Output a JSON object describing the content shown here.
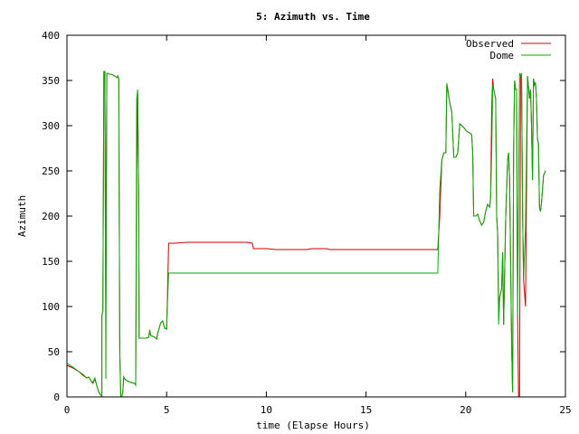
{
  "chart_data": {
    "type": "line",
    "title": "5: Azimuth vs. Time",
    "xlabel": "time (Elapse Hours)",
    "ylabel": "Azimuth",
    "xlim": [
      0,
      25
    ],
    "ylim": [
      0,
      400
    ],
    "x_ticks": [
      0,
      5,
      10,
      15,
      20,
      25
    ],
    "y_ticks": [
      0,
      50,
      100,
      150,
      200,
      250,
      300,
      350,
      400
    ],
    "grid": false,
    "legend_position": "top-right",
    "series": [
      {
        "name": "Observed",
        "color": "#cc0000",
        "points": [
          [
            0,
            35
          ],
          [
            0.3,
            32
          ],
          [
            0.6,
            28
          ],
          [
            0.8,
            24
          ],
          [
            1.0,
            21
          ],
          [
            1.1,
            22
          ],
          [
            1.2,
            18
          ],
          [
            1.3,
            15
          ],
          [
            1.4,
            20
          ],
          [
            1.5,
            12
          ],
          [
            1.6,
            5
          ],
          [
            1.7,
            2
          ],
          [
            1.75,
            0
          ],
          [
            1.75,
            90
          ],
          [
            1.8,
            95
          ],
          [
            1.85,
            360
          ],
          [
            1.9,
            360
          ],
          [
            1.95,
            105
          ],
          [
            2.0,
            358
          ],
          [
            2.05,
            358
          ],
          [
            2.1,
            357
          ],
          [
            2.2,
            357
          ],
          [
            2.3,
            356
          ],
          [
            2.4,
            355
          ],
          [
            2.5,
            353
          ],
          [
            2.55,
            355
          ],
          [
            2.6,
            352
          ],
          [
            2.65,
            50
          ],
          [
            2.7,
            0
          ],
          [
            2.75,
            0
          ],
          [
            2.8,
            5
          ],
          [
            2.85,
            22
          ],
          [
            2.9,
            20
          ],
          [
            3.0,
            18
          ],
          [
            3.2,
            16
          ],
          [
            3.4,
            15
          ],
          [
            3.45,
            13
          ],
          [
            3.5,
            250
          ],
          [
            3.55,
            335
          ],
          [
            3.6,
            220
          ],
          [
            3.62,
            65
          ],
          [
            4.0,
            65
          ],
          [
            4.1,
            66
          ],
          [
            4.15,
            74
          ],
          [
            4.2,
            68
          ],
          [
            4.4,
            66
          ],
          [
            4.5,
            64
          ],
          [
            4.55,
            70
          ],
          [
            4.7,
            82
          ],
          [
            4.8,
            84
          ],
          [
            4.9,
            76
          ],
          [
            5.0,
            75
          ],
          [
            5.05,
            120
          ],
          [
            5.1,
            170
          ],
          [
            5.4,
            170
          ],
          [
            6.0,
            171
          ],
          [
            7.0,
            171
          ],
          [
            8.0,
            171
          ],
          [
            9.0,
            171
          ],
          [
            9.3,
            170
          ],
          [
            9.35,
            164
          ],
          [
            10.0,
            164
          ],
          [
            10.5,
            163
          ],
          [
            11.0,
            163
          ],
          [
            12.0,
            163
          ],
          [
            12.3,
            164
          ],
          [
            13.0,
            164
          ],
          [
            13.2,
            163
          ],
          [
            14.0,
            163
          ],
          [
            15.0,
            163
          ],
          [
            16.0,
            163
          ],
          [
            17.0,
            163
          ],
          [
            18.0,
            163
          ],
          [
            18.6,
            163
          ],
          [
            18.7,
            200
          ],
          [
            18.8,
            262
          ],
          [
            18.9,
            270
          ],
          [
            19.0,
            270
          ],
          [
            19.05,
            345
          ],
          [
            19.1,
            340
          ],
          [
            19.2,
            325
          ],
          [
            19.3,
            315
          ],
          [
            19.35,
            290
          ],
          [
            19.4,
            265
          ],
          [
            19.5,
            265
          ],
          [
            19.6,
            270
          ],
          [
            19.7,
            302
          ],
          [
            19.8,
            300
          ],
          [
            19.9,
            298
          ],
          [
            20.0,
            295
          ],
          [
            20.1,
            293
          ],
          [
            20.2,
            292
          ],
          [
            20.3,
            290
          ],
          [
            20.35,
            270
          ],
          [
            20.4,
            200
          ],
          [
            20.5,
            200
          ],
          [
            20.6,
            202
          ],
          [
            20.7,
            195
          ],
          [
            20.8,
            190
          ],
          [
            20.9,
            193
          ],
          [
            21.0,
            205
          ],
          [
            21.1,
            213
          ],
          [
            21.2,
            210
          ],
          [
            21.25,
            220
          ],
          [
            21.3,
            320
          ],
          [
            21.35,
            352
          ],
          [
            21.4,
            340
          ],
          [
            21.5,
            330
          ],
          [
            21.55,
            200
          ],
          [
            21.6,
            180
          ],
          [
            21.65,
            90
          ],
          [
            21.7,
            110
          ],
          [
            21.8,
            120
          ],
          [
            21.85,
            160
          ],
          [
            21.9,
            80
          ],
          [
            21.95,
            135
          ],
          [
            22.0,
            195
          ],
          [
            22.1,
            262
          ],
          [
            22.15,
            270
          ],
          [
            22.2,
            240
          ],
          [
            22.25,
            150
          ],
          [
            22.3,
            60
          ],
          [
            22.35,
            5
          ],
          [
            22.4,
            270
          ],
          [
            22.45,
            350
          ],
          [
            22.5,
            340
          ],
          [
            22.55,
            340
          ],
          [
            22.6,
            90
          ],
          [
            22.65,
            0
          ],
          [
            22.7,
            0
          ],
          [
            22.75,
            355
          ],
          [
            22.8,
            358
          ],
          [
            22.85,
            210
          ],
          [
            22.9,
            130
          ],
          [
            23.0,
            100
          ],
          [
            23.1,
            355
          ],
          [
            23.2,
            330
          ],
          [
            23.25,
            340
          ],
          [
            23.3,
            300
          ],
          [
            23.35,
            240
          ],
          [
            23.4,
            352
          ],
          [
            23.45,
            345
          ],
          [
            23.5,
            348
          ],
          [
            23.55,
            330
          ],
          [
            23.6,
            285
          ],
          [
            23.65,
            280
          ],
          [
            23.7,
            210
          ],
          [
            23.75,
            205
          ],
          [
            23.8,
            215
          ],
          [
            23.9,
            245
          ],
          [
            24.0,
            250
          ]
        ]
      },
      {
        "name": "Dome",
        "color": "#00aa00",
        "points": [
          [
            0,
            37
          ],
          [
            0.3,
            33
          ],
          [
            0.6,
            28
          ],
          [
            0.8,
            25
          ],
          [
            1.0,
            21
          ],
          [
            1.1,
            22
          ],
          [
            1.2,
            18
          ],
          [
            1.3,
            16
          ],
          [
            1.4,
            21
          ],
          [
            1.5,
            12
          ],
          [
            1.6,
            5
          ],
          [
            1.7,
            2
          ],
          [
            1.75,
            0
          ],
          [
            1.75,
            90
          ],
          [
            1.8,
            95
          ],
          [
            1.85,
            360
          ],
          [
            1.9,
            360
          ],
          [
            1.95,
            20
          ],
          [
            2.0,
            358
          ],
          [
            2.05,
            358
          ],
          [
            2.1,
            357
          ],
          [
            2.2,
            357
          ],
          [
            2.3,
            356
          ],
          [
            2.4,
            355
          ],
          [
            2.5,
            353
          ],
          [
            2.55,
            355
          ],
          [
            2.6,
            352
          ],
          [
            2.65,
            50
          ],
          [
            2.7,
            0
          ],
          [
            2.75,
            0
          ],
          [
            2.8,
            5
          ],
          [
            2.85,
            22
          ],
          [
            2.9,
            20
          ],
          [
            3.0,
            18
          ],
          [
            3.2,
            16
          ],
          [
            3.4,
            15
          ],
          [
            3.45,
            13
          ],
          [
            3.5,
            330
          ],
          [
            3.55,
            340
          ],
          [
            3.6,
            220
          ],
          [
            3.62,
            65
          ],
          [
            4.0,
            65
          ],
          [
            4.1,
            66
          ],
          [
            4.15,
            74
          ],
          [
            4.2,
            68
          ],
          [
            4.4,
            66
          ],
          [
            4.5,
            64
          ],
          [
            4.55,
            70
          ],
          [
            4.7,
            82
          ],
          [
            4.8,
            84
          ],
          [
            4.9,
            76
          ],
          [
            5.0,
            75
          ],
          [
            5.05,
            110
          ],
          [
            5.1,
            137
          ],
          [
            6.0,
            137
          ],
          [
            7.0,
            137
          ],
          [
            8.0,
            137
          ],
          [
            9.0,
            137
          ],
          [
            10.0,
            137
          ],
          [
            11.0,
            137
          ],
          [
            12.0,
            137
          ],
          [
            13.0,
            137
          ],
          [
            14.0,
            137
          ],
          [
            15.0,
            137
          ],
          [
            16.0,
            137
          ],
          [
            17.0,
            137
          ],
          [
            18.0,
            137
          ],
          [
            18.6,
            137
          ],
          [
            18.7,
            230
          ],
          [
            18.8,
            262
          ],
          [
            18.9,
            270
          ],
          [
            19.0,
            270
          ],
          [
            19.05,
            347
          ],
          [
            19.1,
            340
          ],
          [
            19.2,
            325
          ],
          [
            19.3,
            315
          ],
          [
            19.35,
            290
          ],
          [
            19.4,
            265
          ],
          [
            19.5,
            265
          ],
          [
            19.6,
            270
          ],
          [
            19.7,
            302
          ],
          [
            19.8,
            300
          ],
          [
            19.9,
            298
          ],
          [
            20.0,
            295
          ],
          [
            20.1,
            293
          ],
          [
            20.2,
            292
          ],
          [
            20.3,
            290
          ],
          [
            20.35,
            270
          ],
          [
            20.4,
            200
          ],
          [
            20.5,
            200
          ],
          [
            20.6,
            202
          ],
          [
            20.7,
            195
          ],
          [
            20.8,
            190
          ],
          [
            20.9,
            193
          ],
          [
            21.0,
            205
          ],
          [
            21.1,
            213
          ],
          [
            21.2,
            210
          ],
          [
            21.25,
            220
          ],
          [
            21.3,
            270
          ],
          [
            21.35,
            345
          ],
          [
            21.4,
            340
          ],
          [
            21.5,
            330
          ],
          [
            21.55,
            200
          ],
          [
            21.6,
            180
          ],
          [
            21.65,
            80
          ],
          [
            21.7,
            110
          ],
          [
            21.8,
            120
          ],
          [
            21.85,
            160
          ],
          [
            21.9,
            80
          ],
          [
            21.95,
            135
          ],
          [
            22.0,
            195
          ],
          [
            22.1,
            262
          ],
          [
            22.15,
            270
          ],
          [
            22.2,
            240
          ],
          [
            22.25,
            150
          ],
          [
            22.3,
            60
          ],
          [
            22.35,
            5
          ],
          [
            22.4,
            270
          ],
          [
            22.45,
            350
          ],
          [
            22.5,
            340
          ],
          [
            22.55,
            340
          ],
          [
            22.6,
            90
          ],
          [
            22.7,
            358
          ],
          [
            22.75,
            355
          ],
          [
            22.8,
            358
          ],
          [
            22.85,
            210
          ],
          [
            22.9,
            130
          ],
          [
            23.0,
            190
          ],
          [
            23.1,
            355
          ],
          [
            23.2,
            330
          ],
          [
            23.25,
            340
          ],
          [
            23.3,
            300
          ],
          [
            23.35,
            240
          ],
          [
            23.4,
            352
          ],
          [
            23.45,
            345
          ],
          [
            23.5,
            348
          ],
          [
            23.55,
            330
          ],
          [
            23.6,
            285
          ],
          [
            23.65,
            280
          ],
          [
            23.7,
            210
          ],
          [
            23.75,
            205
          ],
          [
            23.8,
            215
          ],
          [
            23.9,
            245
          ],
          [
            24.0,
            250
          ]
        ]
      }
    ]
  }
}
